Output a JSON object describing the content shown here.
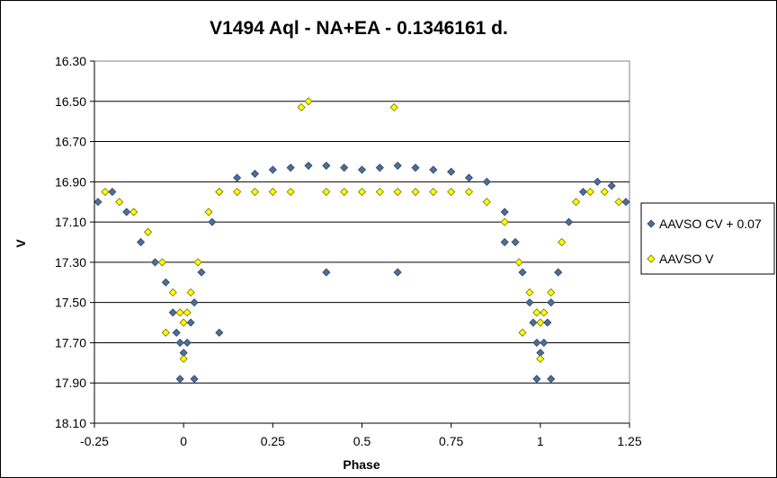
{
  "chart_data": {
    "type": "scatter",
    "title": "V1494 Aql - NA+EA - 0.1346161 d.",
    "xlabel": "Phase",
    "ylabel": "V",
    "xlim": [
      -0.25,
      1.25
    ],
    "ylim": [
      16.3,
      18.1
    ],
    "y_inverted": true,
    "xticks": [
      -0.25,
      0,
      0.25,
      0.5,
      0.75,
      1,
      1.25
    ],
    "xtick_labels": [
      "-0.25",
      "0",
      "0.25",
      "0.5",
      "0.75",
      "1",
      "1.25"
    ],
    "yticks": [
      16.3,
      16.5,
      16.7,
      16.9,
      17.1,
      17.3,
      17.5,
      17.7,
      17.9,
      18.1
    ],
    "ytick_labels": [
      "16.30",
      "16.50",
      "16.70",
      "16.90",
      "17.10",
      "17.30",
      "17.50",
      "17.70",
      "17.90",
      "18.10"
    ],
    "grid": {
      "x": false,
      "y": true
    },
    "legend_position": "right",
    "series": [
      {
        "name": "AAVSO CV + 0.07",
        "marker": "diamond",
        "color": "#4F6E96",
        "edge_color": "#2E4565",
        "x": [
          -0.24,
          -0.2,
          -0.16,
          -0.12,
          -0.08,
          -0.05,
          -0.03,
          -0.02,
          -0.01,
          0,
          0.01,
          0.02,
          0.03,
          0.05,
          0.08,
          0.1,
          0.15,
          0.2,
          0.25,
          0.3,
          0.35,
          0.4,
          0.45,
          0.5,
          0.55,
          0.6,
          0.65,
          0.7,
          0.75,
          0.8,
          0.85,
          0.9,
          0.93,
          0.95,
          0.97,
          0.98,
          0.99,
          1.0,
          1.01,
          1.02,
          1.03,
          1.05,
          1.08,
          1.12,
          1.16,
          1.2,
          1.24,
          -0.01,
          0.03,
          0.99,
          1.03,
          0.4,
          0.6,
          0.1,
          0.9
        ],
        "y": [
          17.0,
          16.95,
          17.05,
          17.2,
          17.3,
          17.4,
          17.55,
          17.65,
          17.7,
          17.75,
          17.7,
          17.6,
          17.5,
          17.35,
          17.1,
          16.95,
          16.88,
          16.86,
          16.84,
          16.83,
          16.82,
          16.82,
          16.83,
          16.84,
          16.83,
          16.82,
          16.83,
          16.84,
          16.85,
          16.88,
          16.9,
          17.05,
          17.2,
          17.35,
          17.5,
          17.6,
          17.7,
          17.75,
          17.7,
          17.6,
          17.5,
          17.35,
          17.1,
          16.95,
          16.9,
          16.92,
          17.0,
          17.88,
          17.88,
          17.88,
          17.88,
          17.35,
          17.35,
          17.65,
          17.2
        ]
      },
      {
        "name": "AAVSO V",
        "marker": "diamond",
        "color": "#FFFF00",
        "edge_color": "#6E6E00",
        "x": [
          -0.22,
          -0.18,
          -0.14,
          -0.1,
          -0.06,
          -0.03,
          -0.01,
          0.0,
          0.01,
          0.02,
          0.04,
          0.07,
          0.1,
          0.15,
          0.2,
          0.25,
          0.3,
          0.33,
          0.35,
          0.4,
          0.45,
          0.5,
          0.55,
          0.59,
          0.6,
          0.65,
          0.7,
          0.75,
          0.8,
          0.85,
          0.9,
          0.94,
          0.97,
          0.99,
          1.0,
          1.01,
          1.03,
          1.06,
          1.1,
          1.14,
          1.18,
          1.22,
          -0.05,
          0.0,
          0.95,
          1.0
        ],
        "y": [
          16.95,
          17.0,
          17.05,
          17.15,
          17.3,
          17.45,
          17.55,
          17.6,
          17.55,
          17.45,
          17.3,
          17.05,
          16.95,
          16.95,
          16.95,
          16.95,
          16.95,
          16.53,
          16.5,
          16.95,
          16.95,
          16.95,
          16.95,
          16.53,
          16.95,
          16.95,
          16.95,
          16.95,
          16.95,
          17.0,
          17.1,
          17.3,
          17.45,
          17.55,
          17.6,
          17.55,
          17.45,
          17.2,
          17.0,
          16.95,
          16.95,
          17.0,
          17.65,
          17.78,
          17.65,
          17.78
        ]
      }
    ]
  }
}
